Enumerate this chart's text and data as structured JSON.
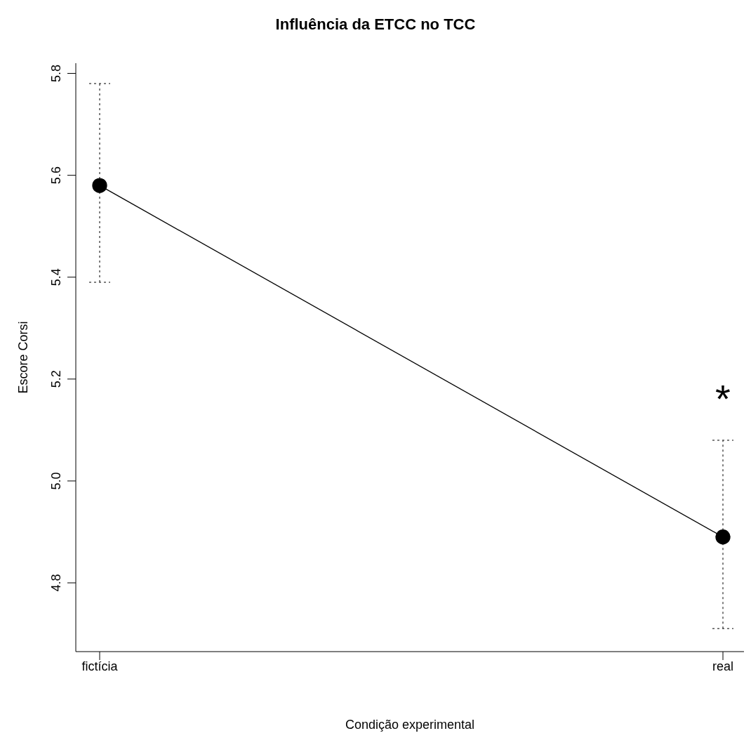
{
  "chart_data": {
    "type": "line",
    "title": "Influência da ETCC no TCC",
    "xlabel": "Condição experimental",
    "ylabel": "Escore Corsi",
    "categories": [
      "fictícia",
      "real"
    ],
    "series": [
      {
        "color": "#000000",
        "values": [
          5.58,
          4.89
        ],
        "errors": [
          [
            5.39,
            5.78
          ],
          [
            4.71,
            5.08
          ]
        ]
      }
    ],
    "ylim": [
      4.665,
      5.82
    ],
    "yticks": [
      {
        "value": 4.8,
        "label": "4.8"
      },
      {
        "value": 5.0,
        "label": "5.0"
      },
      {
        "value": 5.2,
        "label": "5.2"
      },
      {
        "value": 5.4,
        "label": "5.4"
      },
      {
        "value": 5.6,
        "label": "5.6"
      },
      {
        "value": 5.8,
        "label": "5.8"
      }
    ],
    "marker": "circle",
    "line_style": "solid",
    "grid": false,
    "legend": false,
    "annotations": [
      "*"
    ]
  }
}
